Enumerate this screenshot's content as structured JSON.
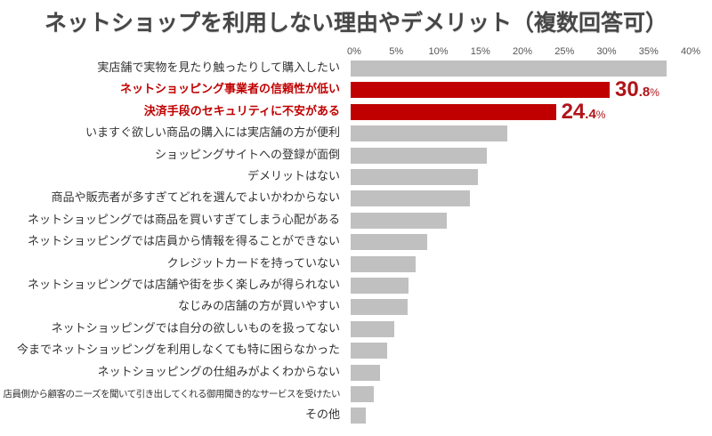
{
  "title": "ネットショップを利用しない理由やデメリット（複数回答可）",
  "axis": {
    "ticks": [
      "0%",
      "5%",
      "10%",
      "15%",
      "20%",
      "25%",
      "30%",
      "35%",
      "40%"
    ]
  },
  "colors": {
    "bar": "#c0c0c0",
    "highlight": "#c00000",
    "value_label": "#b0141a",
    "title": "#474747"
  },
  "chart_data": {
    "type": "bar",
    "orientation": "horizontal",
    "title": "ネットショップを利用しない理由やデメリット（複数回答可）",
    "xlabel": "",
    "ylabel": "",
    "xlim": [
      0,
      40
    ],
    "x_ticks": [
      "0%",
      "5%",
      "10%",
      "15%",
      "20%",
      "25%",
      "30%",
      "35%",
      "40%"
    ],
    "grid": false,
    "legend": null,
    "categories": [
      "実店舗で実物を見たり触ったりして購入したい",
      "ネットショッピング事業者の信頼性が低い",
      "決済手段のセキュリティに不安がある",
      "いますぐ欲しい商品の購入には実店舗の方が便利",
      "ショッピングサイトへの登録が面倒",
      "デメリットはない",
      "商品や販売者が多すぎてどれを選んでよいかわからない",
      "ネットショッピングでは商品を買いすぎてしまう心配がある",
      "ネットショッピングでは店員から情報を得ることができない",
      "クレジットカードを持っていない",
      "ネットショッピングでは店舗や街を歩く楽しみが得られない",
      "なじみの店舗の方が買いやすい",
      "ネットショッピングでは自分の欲しいものを扱ってない",
      "今までネットショッピングを利用しなくても特に困らなかった",
      "ネットショッピングの仕組みがよくわからない",
      "店員側から顧客のニーズを聞いて引き出してくれる御用聞き的なサービスを受けたい",
      "その他"
    ],
    "values": [
      37.6,
      30.8,
      24.4,
      18.6,
      16.2,
      15.1,
      14.2,
      11.4,
      9.1,
      7.7,
      6.9,
      6.8,
      5.2,
      4.3,
      3.5,
      2.8,
      1.8
    ],
    "highlighted": [
      false,
      true,
      true,
      false,
      false,
      false,
      false,
      false,
      false,
      false,
      false,
      false,
      false,
      false,
      false,
      false,
      false
    ],
    "annotations": [
      {
        "category_index": 1,
        "text": "30.8%",
        "int": "30",
        "dec": ".8",
        "unit": "%"
      },
      {
        "category_index": 2,
        "text": "24.4%",
        "int": "24",
        "dec": ".4",
        "unit": "%"
      }
    ]
  }
}
